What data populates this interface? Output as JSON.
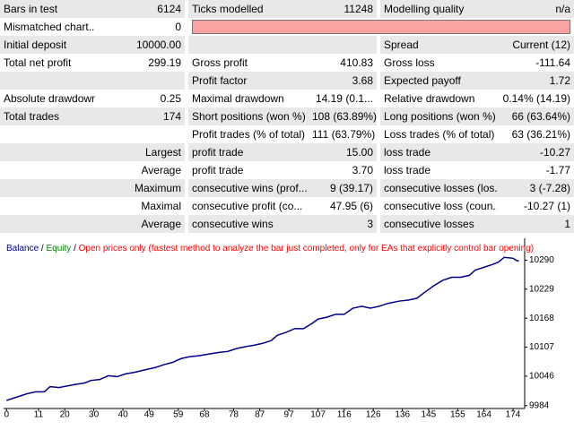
{
  "table": {
    "rows": [
      [
        "Bars in test",
        "6124",
        "Ticks modelled",
        "11248",
        "Modelling quality",
        "n/a"
      ],
      [
        "Mismatched chart...",
        "0"
      ],
      [
        "Initial deposit",
        "10000.00",
        "Spread",
        "Current (12)"
      ],
      [
        "Total net profit",
        "299.19",
        "Gross profit",
        "410.83",
        "Gross loss",
        "-111.64"
      ],
      [
        "Profit factor",
        "3.68",
        "Expected payoff",
        "1.72"
      ],
      [
        "Absolute drawdown",
        "0.25",
        "Maximal drawdown",
        "14.19 (0.1...",
        "Relative drawdown",
        "0.14% (14.19)"
      ],
      [
        "Total trades",
        "174",
        "Short positions (won %)",
        "108 (63.89%)",
        "Long positions (won %)",
        "66 (63.64%)"
      ],
      [
        "Profit trades (% of total)",
        "111 (63.79%)",
        "Loss trades (% of total)",
        "63 (36.21%)"
      ],
      [
        "Largest",
        "profit trade",
        "15.00",
        "loss trade",
        "-10.27"
      ],
      [
        "Average",
        "profit trade",
        "3.70",
        "loss trade",
        "-1.77"
      ],
      [
        "Maximum",
        "consecutive wins (prof...",
        "9 (39.17)",
        "consecutive losses (los...",
        "3 (-7.28)"
      ],
      [
        "Maximal",
        "consecutive profit (co...",
        "47.95 (6)",
        "consecutive loss (coun...",
        "-10.27 (1)"
      ],
      [
        "Average",
        "consecutive wins",
        "3",
        "consecutive losses",
        "1"
      ]
    ]
  },
  "chart_data": {
    "type": "line",
    "legend_extra": [
      {
        "text": "/",
        "color": "#000000"
      },
      {
        "text": "Equity",
        "color": "#008000"
      },
      {
        "text": "/",
        "color": "#000000"
      },
      {
        "text": "Open prices only (fastest method to analyze the bar just completed, only for EAs that explicitly control bar opening)",
        "color": "#ff0000"
      }
    ],
    "x": [
      0,
      2,
      4,
      7,
      10,
      13,
      15,
      18,
      23,
      27,
      29,
      32,
      35,
      38,
      41,
      44,
      48,
      51,
      54,
      57,
      60,
      63,
      66,
      69,
      73,
      76,
      79,
      82,
      85,
      88,
      91,
      93,
      96,
      99,
      102,
      105,
      107,
      110,
      113,
      116,
      119,
      122,
      125,
      128,
      131,
      135,
      138,
      141,
      144,
      147,
      150,
      153,
      156,
      159,
      161,
      164,
      167,
      169,
      171,
      174,
      175,
      176
    ],
    "series": [
      {
        "name": "Balance",
        "color": "#00008b",
        "values": [
          9995,
          9999,
          10003,
          10009,
          10013,
          10013,
          10024,
          10022,
          10028,
          10032,
          10037,
          10039,
          10047,
          10045,
          10051,
          10054,
          10060,
          10064,
          10070,
          10075,
          10083,
          10087,
          10089,
          10092,
          10096,
          10098,
          10104,
          10108,
          10111,
          10115,
          10121,
          10132,
          10138,
          10146,
          10146,
          10157,
          10166,
          10170,
          10176,
          10176,
          10189,
          10193,
          10189,
          10193,
          10199,
          10204,
          10206,
          10210,
          10224,
          10237,
          10248,
          10254,
          10254,
          10258,
          10269,
          10275,
          10281,
          10286,
          10296,
          10294,
          10290,
          10288
        ]
      }
    ],
    "xlim": [
      -1,
      178
    ],
    "ylim": [
      9978,
      10336
    ],
    "xticks": [
      0,
      11,
      20,
      30,
      40,
      49,
      59,
      68,
      78,
      87,
      97,
      107,
      116,
      126,
      136,
      145,
      155,
      164,
      174
    ],
    "yticks": [
      9984,
      10046,
      10107,
      10168,
      10229,
      10290
    ],
    "grid": false
  }
}
